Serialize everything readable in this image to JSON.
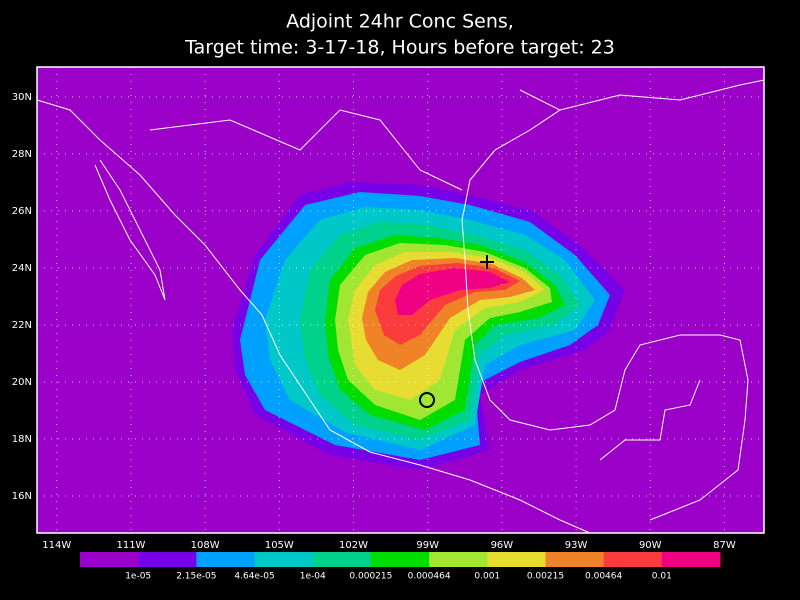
{
  "title": [
    "Adjoint 24hr Conc Sens,",
    "Target time: 3-17-18, Hours before target: 23"
  ],
  "map": {
    "lon_range": [
      -114.8,
      -85.4
    ],
    "lat_range": [
      14.7,
      31.05
    ],
    "lon_ticks": [
      {
        "value": -114,
        "label": "114W"
      },
      {
        "value": -111,
        "label": "111W"
      },
      {
        "value": -108,
        "label": "108W"
      },
      {
        "value": -105,
        "label": "105W"
      },
      {
        "value": -102,
        "label": "102W"
      },
      {
        "value": -99,
        "label": "99W"
      },
      {
        "value": -96,
        "label": "96W"
      },
      {
        "value": -93,
        "label": "93W"
      },
      {
        "value": -90,
        "label": "90W"
      },
      {
        "value": -87,
        "label": "87W"
      }
    ],
    "lat_ticks": [
      {
        "value": 30,
        "label": "30N"
      },
      {
        "value": 28,
        "label": "28N"
      },
      {
        "value": 26,
        "label": "26N"
      },
      {
        "value": 24,
        "label": "24N"
      },
      {
        "value": 22,
        "label": "22N"
      },
      {
        "value": 20,
        "label": "20N"
      },
      {
        "value": 18,
        "label": "18N"
      },
      {
        "value": 16,
        "label": "16N"
      }
    ],
    "background": "#9a00c8",
    "grid": true
  },
  "colorbar": {
    "colors": [
      "#9a00c8",
      "#7800e6",
      "#00a0ff",
      "#00c8c8",
      "#00d28c",
      "#00dc00",
      "#a0e632",
      "#e6dc32",
      "#f08228",
      "#fa3c3c",
      "#f00082"
    ],
    "labels": [
      "1e-05",
      "2.15e-05",
      "4.64e-05",
      "1e-04",
      "0.000215",
      "0.000464",
      "0.001",
      "0.00215",
      "0.00464",
      "0.01"
    ]
  }
}
